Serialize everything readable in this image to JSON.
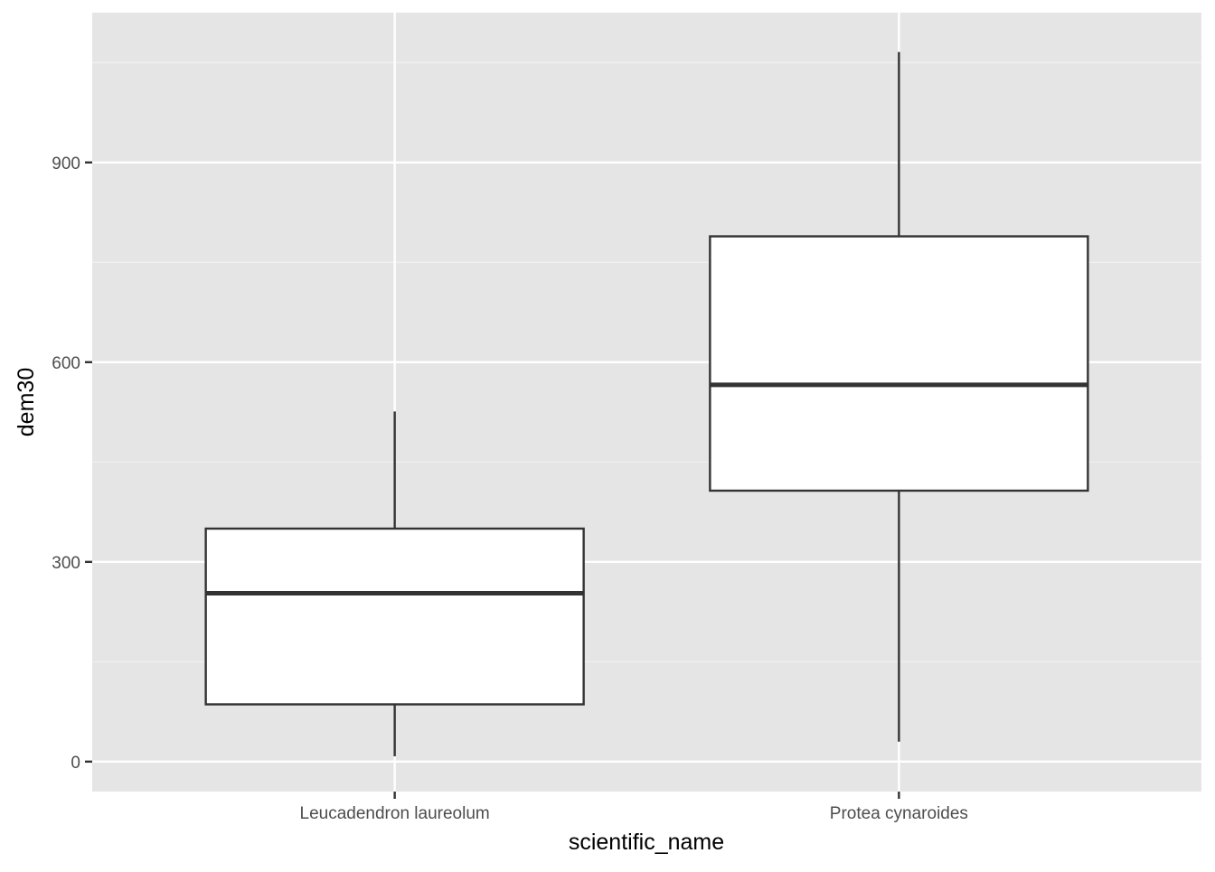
{
  "colors": {
    "panel_background": "#e5e5e5",
    "grid_major": "#ffffff",
    "grid_minor": "#f2f2f2",
    "box_fill": "#ffffff",
    "box_stroke": "#333333",
    "tick_mark": "#333333",
    "tick_text": "#4d4d4d",
    "axis_title": "#000000"
  },
  "chart_data": {
    "type": "boxplot",
    "xlabel": "scientific_name",
    "ylabel": "dem30",
    "ylim": [
      -45,
      1125
    ],
    "y_ticks": [
      0,
      300,
      600,
      900
    ],
    "y_tick_labels": [
      "0",
      "300",
      "600",
      "900"
    ],
    "y_minor_ticks": [
      150,
      450,
      750,
      1050
    ],
    "grid": true,
    "legend": "none",
    "categories": [
      "Leucadendron laureolum",
      "Protea cynaroides"
    ],
    "boxes": [
      {
        "category": "Leucadendron laureolum",
        "whisker_low": 8,
        "q1": 86,
        "median": 253,
        "q3": 350,
        "whisker_high": 526
      },
      {
        "category": "Protea cynaroides",
        "whisker_low": 30,
        "q1": 407,
        "median": 566,
        "q3": 789,
        "whisker_high": 1066
      }
    ]
  }
}
